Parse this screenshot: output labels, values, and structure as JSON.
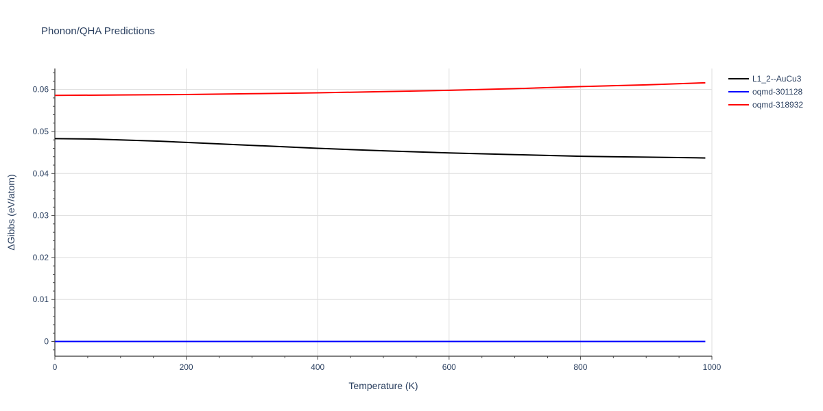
{
  "chart_data": {
    "type": "line",
    "title": "Phonon/QHA Predictions",
    "xlabel": "Temperature (K)",
    "ylabel": "ΔGibbs (eV/atom)",
    "xlim": [
      0,
      1000
    ],
    "ylim": [
      -0.0035,
      0.065
    ],
    "x_ticks": [
      0,
      200,
      400,
      600,
      800,
      1000
    ],
    "y_ticks": [
      0,
      0.01,
      0.02,
      0.03,
      0.04,
      0.05,
      0.06
    ],
    "x_tick_labels": [
      "0",
      "200",
      "400",
      "600",
      "800",
      "1000"
    ],
    "y_tick_labels": [
      "0",
      "0.01",
      "0.02",
      "0.03",
      "0.04",
      "0.05",
      "0.06"
    ],
    "grid": true,
    "legend_position": "top-right-outside",
    "series": [
      {
        "name": "L1_2--AuCu3",
        "color": "#000000",
        "x": [
          0,
          60,
          100,
          160,
          200,
          300,
          400,
          500,
          600,
          700,
          800,
          900,
          990
        ],
        "y": [
          0.0483,
          0.0482,
          0.048,
          0.0477,
          0.0474,
          0.0467,
          0.046,
          0.0454,
          0.0449,
          0.0445,
          0.0441,
          0.0439,
          0.0437
        ]
      },
      {
        "name": "oqmd-301128",
        "color": "#0000ff",
        "x": [
          0,
          200,
          400,
          600,
          800,
          990
        ],
        "y": [
          0,
          0,
          0,
          0,
          0,
          0
        ]
      },
      {
        "name": "oqmd-318932",
        "color": "#ff0000",
        "x": [
          0,
          100,
          200,
          300,
          400,
          500,
          600,
          700,
          800,
          900,
          990
        ],
        "y": [
          0.0586,
          0.0587,
          0.0588,
          0.059,
          0.0592,
          0.0595,
          0.0598,
          0.0602,
          0.0607,
          0.0611,
          0.0616
        ]
      }
    ]
  }
}
